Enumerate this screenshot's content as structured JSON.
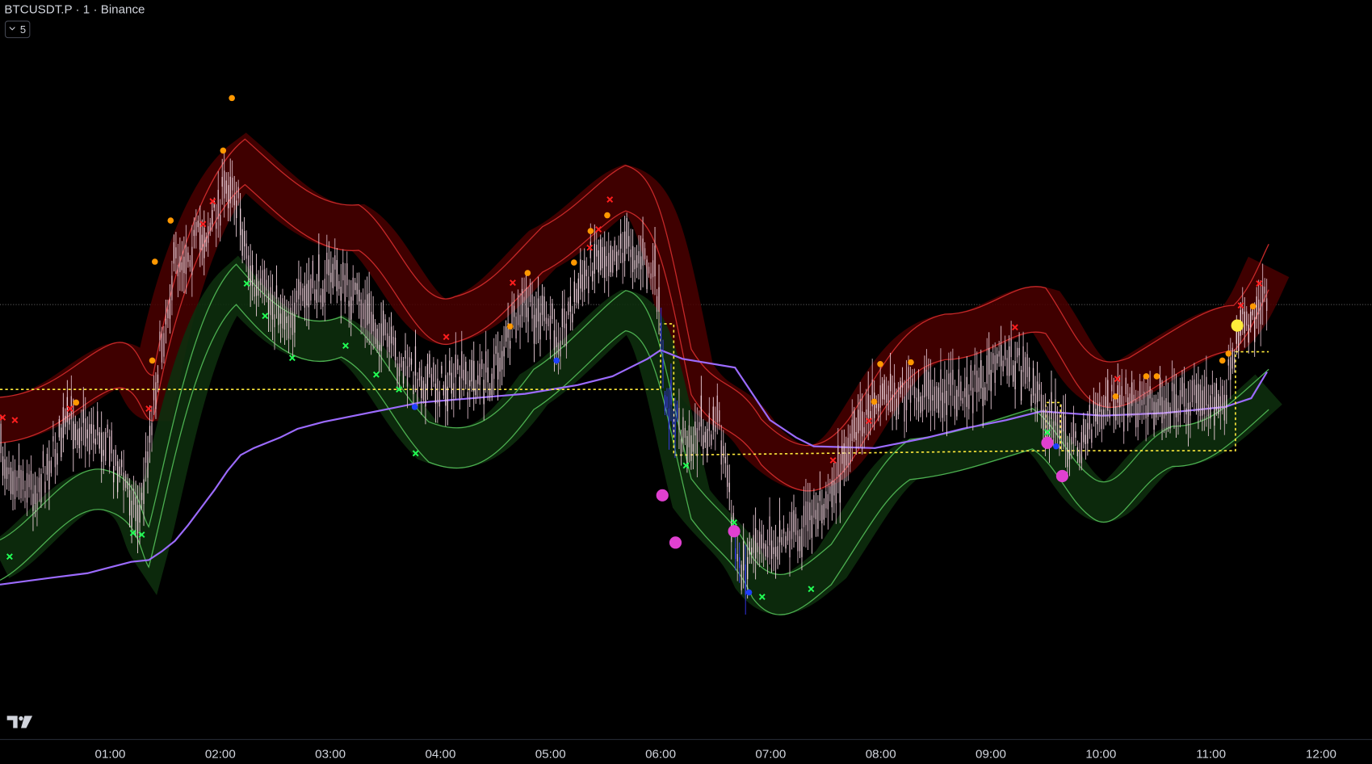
{
  "header": {
    "symbol": "BTCUSDT.P · 1 · Binance",
    "indicator_count": "5"
  },
  "x_axis": {
    "labels": [
      "01:00",
      "02:00",
      "03:00",
      "04:00",
      "05:00",
      "06:00",
      "07:00",
      "08:00",
      "09:00",
      "10:00",
      "11:00",
      "12:00"
    ]
  }
}
